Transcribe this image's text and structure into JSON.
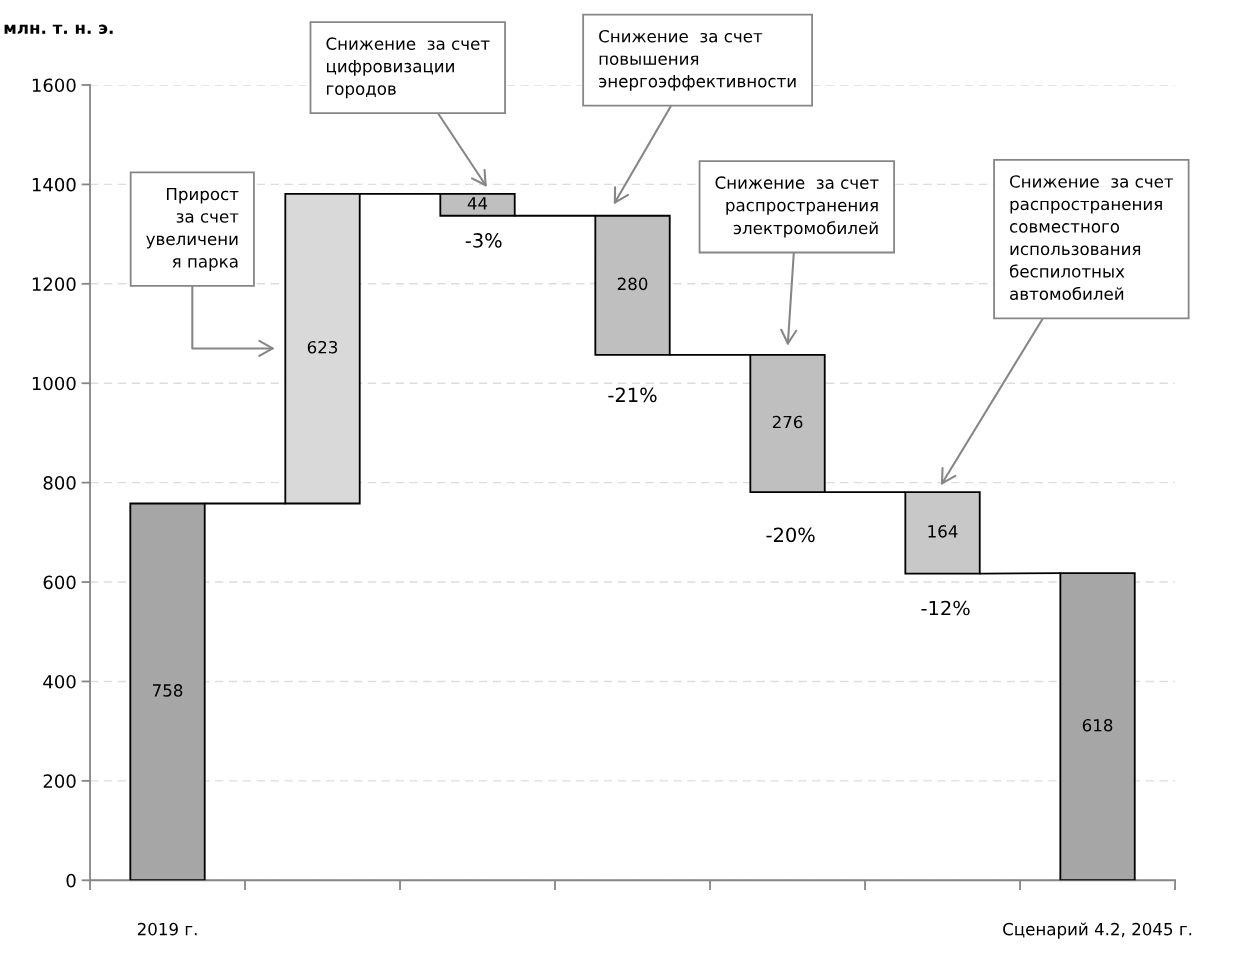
{
  "chart_data": {
    "type": "bar",
    "ylabel": "млн. т. н. э.",
    "categories": [
      "2019 г.",
      null,
      null,
      null,
      null,
      null,
      "Сценарий 4.2, 2045 г."
    ],
    "values": [
      758,
      623,
      44,
      280,
      276,
      164,
      618
    ],
    "base": [
      0,
      758,
      1337,
      1057,
      781,
      617,
      0
    ],
    "colors": [
      "#a6a6a6",
      "#d9d9d9",
      "#bfbfbf",
      "#bfbfbf",
      "#bfbfbf",
      "#c8c8c8",
      "#a6a6a6"
    ],
    "data_labels": true,
    "ylim": [
      0,
      1600
    ],
    "yticks": [
      0,
      200,
      400,
      600,
      800,
      1000,
      1200,
      1400,
      1600
    ],
    "grid": "y",
    "annotations": [
      "Прирост\nза счет\nувеличени\nя парка",
      "Снижение  за счет\nцифровизации\nгородов",
      "Снижение  за счет\nповышения\nэнергоэффективности",
      "Снижение  за счет\nраспространения\nэлектромобилей",
      "Снижение  за счет\nраспространения\nсовместного\nиспользования\nбеспилотных\nавтомобилей",
      {
        "text": "-3%",
        "y": 1337
      },
      {
        "text": "-21%",
        "y": 1057
      },
      {
        "text": "-20%",
        "y": 781
      },
      {
        "text": "-12%",
        "y": 617
      }
    ]
  }
}
